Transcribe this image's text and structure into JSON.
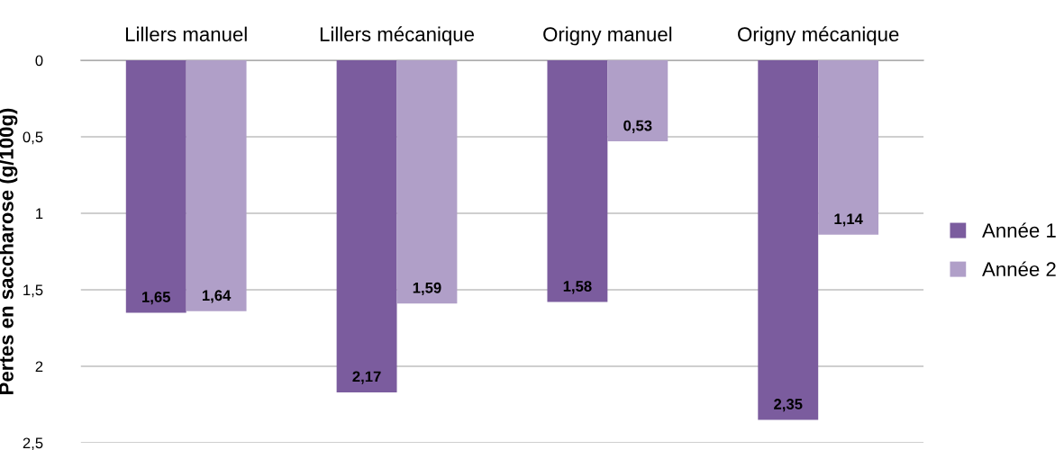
{
  "chart_data": {
    "type": "bar",
    "ylabel": "Pertes en saccharose (g/100g)",
    "categories": [
      "Lillers manuel",
      "Lillers mécanique",
      "Origny manuel",
      "Origny mécanique"
    ],
    "series": [
      {
        "name": "Année 1",
        "color": "#7b5c9e",
        "values": [
          1.65,
          2.17,
          1.58,
          2.35
        ],
        "value_labels": [
          "1,65",
          "2,17",
          "1,58",
          "2,35"
        ]
      },
      {
        "name": "Année 2",
        "color": "#b09fc8",
        "values": [
          1.64,
          1.59,
          0.53,
          1.14
        ],
        "value_labels": [
          "1,64",
          "1,59",
          "0,53",
          "1,14"
        ]
      }
    ],
    "ylim": [
      2.5,
      0
    ],
    "yticks": [
      0,
      {
        "value": 0.5,
        "label": "0,5"
      },
      1,
      {
        "value": 1.5,
        "label": "1,5"
      },
      2,
      {
        "value": 2.5,
        "label": "2,5"
      }
    ],
    "grid": "y",
    "legend": "right"
  }
}
